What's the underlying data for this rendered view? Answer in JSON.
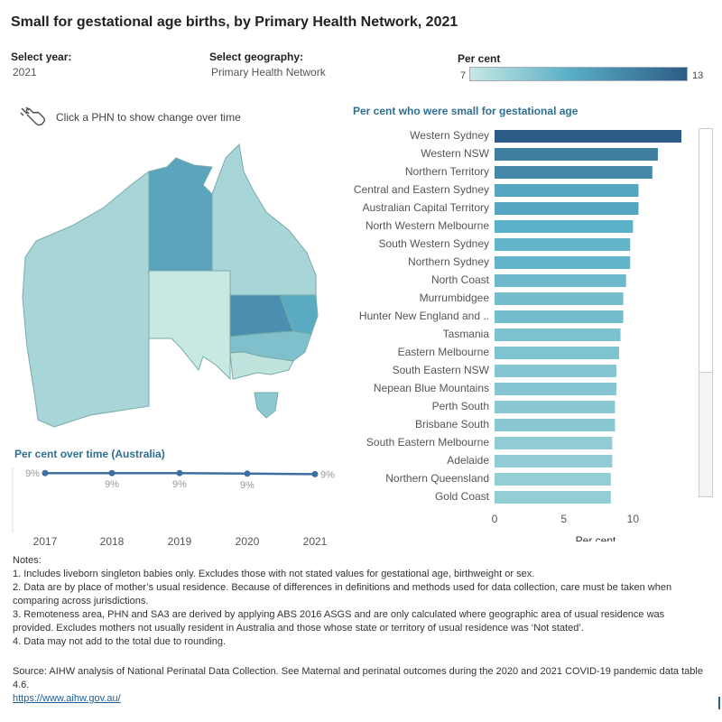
{
  "title": "Small for gestational age births, by Primary Health Network, 2021",
  "controls": {
    "year_label": "Select year:",
    "year_value": "2021",
    "geo_label": "Select geography:",
    "geo_value": "Primary Health Network"
  },
  "legend": {
    "title": "Per cent",
    "min": "7",
    "max": "13",
    "colors": [
      "#c7e8e2",
      "#5ab0c7",
      "#2d5c86"
    ]
  },
  "hint": {
    "text": "Click a PHN to show change over time",
    "icon": "hand-pointer-icon"
  },
  "map": {
    "description_colors": {
      "low": "#c7e8e2",
      "mid": "#a3d4d7",
      "high": "#5ba2bb",
      "highest": "#4a8fb0"
    }
  },
  "bar_chart": {
    "title": "Per cent who were small for gestational age",
    "xlabel": "Per cent"
  },
  "time_chart": {
    "title": "Per cent over time (Australia)"
  },
  "chart_data": [
    {
      "type": "bar",
      "orientation": "horizontal",
      "title": "Per cent who were small for gestational age",
      "xlabel": "Per cent",
      "ylabel": "",
      "xlim": [
        0,
        13.5
      ],
      "xticks": [
        0,
        5,
        10
      ],
      "grid": false,
      "categories": [
        "Western Sydney",
        "Western NSW",
        "Northern Territory",
        "Central and Eastern Sydney",
        "Australian Capital Territory",
        "North Western Melbourne",
        "South Western Sydney",
        "Northern Sydney",
        "North Coast",
        "Murrumbidgee",
        "Hunter New England and ..",
        "Tasmania",
        "Eastern Melbourne",
        "South Eastern NSW",
        "Nepean Blue Mountains",
        "Perth South",
        "Brisbane South",
        "South Eastern Melbourne",
        "Adelaide",
        "Northern Queensland",
        "Gold Coast"
      ],
      "values": [
        13.5,
        11.8,
        11.4,
        10.4,
        10.4,
        10.0,
        9.8,
        9.8,
        9.5,
        9.3,
        9.3,
        9.1,
        9.0,
        8.8,
        8.8,
        8.7,
        8.7,
        8.5,
        8.5,
        8.4,
        8.4
      ]
    },
    {
      "type": "line",
      "title": "Per cent over time (Australia)",
      "xlabel": "",
      "ylabel": "",
      "categories": [
        "2017",
        "2018",
        "2019",
        "2020",
        "2021"
      ],
      "values": [
        9.3,
        9.3,
        9.3,
        9.2,
        9.1
      ],
      "labels": [
        "9%",
        "9%",
        "9%",
        "9%",
        "9%"
      ],
      "ylim": [
        0,
        10
      ],
      "grid": false,
      "color": "#3d6fa0"
    }
  ],
  "notes": {
    "heading": "Notes:",
    "lines": [
      "1. Includes liveborn singleton babies only. Excludes those with not stated values for gestational age, birthweight or sex.",
      "2. Data are by place of mother’s usual residence. Because of differences in definitions and methods used for data collection, care must be taken when comparing across jurisdictions.",
      "3. Remoteness area, PHN and SA3 are derived by applying ABS 2016 ASGS and are only calculated where geographic area of usual residence was provided. Excludes mothers not usually resident in Australia and those whose state or territory of usual residence was ‘Not stated’.",
      "4. Data may not add to the total due to rounding."
    ]
  },
  "source": {
    "text": "Source: AIHW analysis of National Perinatal Data Collection. See Maternal and perinatal outcomes during the 2020 and 2021 COVID-19 pandemic data table 4.6.",
    "link": "https://www.aihw.gov.au/"
  }
}
